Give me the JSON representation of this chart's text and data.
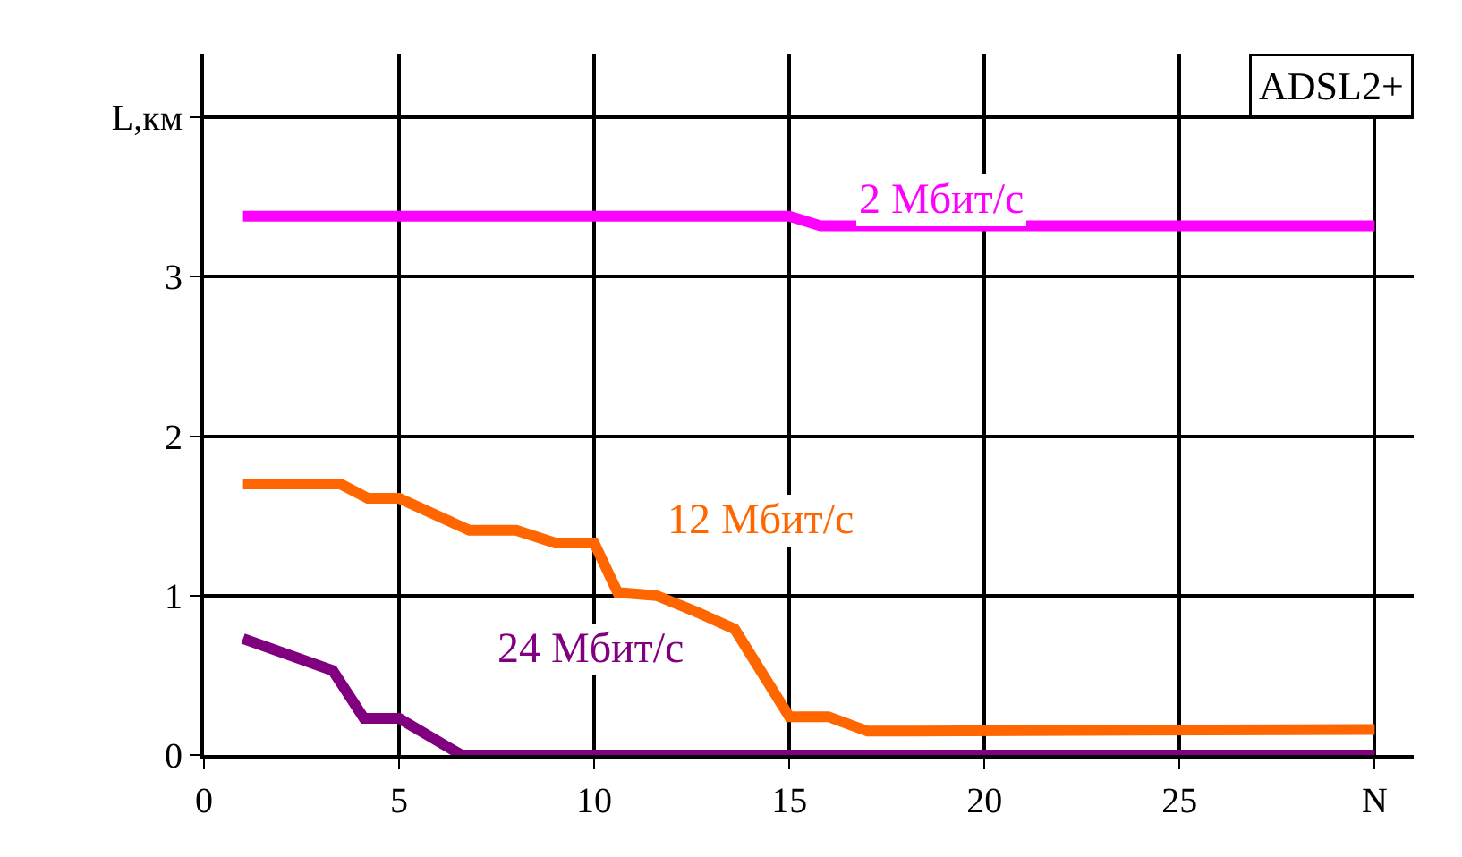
{
  "chart_data": {
    "type": "line",
    "title": "ADSL2+",
    "xlim": [
      0,
      31
    ],
    "xticks": [
      0,
      5,
      10,
      15,
      20,
      25,
      {
        "value": 30,
        "label": "N"
      }
    ],
    "ylim": [
      0,
      4.4
    ],
    "yticks": [
      0,
      1,
      2,
      3,
      {
        "value": 4,
        "label": "L,км"
      }
    ],
    "grid": true,
    "legend": false,
    "marker": "none",
    "line_style": "solid",
    "series": [
      {
        "name": "2 Мбит/с",
        "color": "#ff00ff",
        "x": [
          1,
          15,
          15.8,
          30
        ],
        "values": [
          3.38,
          3.38,
          3.32,
          3.32
        ]
      },
      {
        "name": "12 Мбит/с",
        "color": "#ff6600",
        "x": [
          1,
          3.5,
          4.2,
          5,
          6.8,
          8,
          9,
          10,
          10.6,
          11.6,
          12.7,
          13.6,
          15,
          16,
          17,
          30
        ],
        "values": [
          1.7,
          1.7,
          1.61,
          1.61,
          1.41,
          1.41,
          1.33,
          1.33,
          1.02,
          1.0,
          0.89,
          0.79,
          0.24,
          0.24,
          0.15,
          0.16
        ]
      },
      {
        "name": "24 Мбит/с",
        "color": "#800080",
        "x": [
          1,
          3.3,
          4.1,
          5,
          5.9,
          6.6,
          30
        ],
        "values": [
          0.73,
          0.53,
          0.23,
          0.23,
          0.1,
          0,
          0
        ]
      }
    ]
  }
}
